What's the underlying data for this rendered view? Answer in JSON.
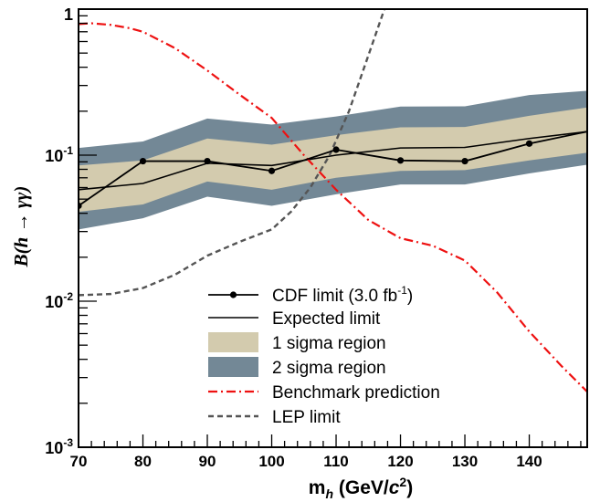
{
  "chart_data": {
    "type": "line",
    "xlabel": {
      "main": "m",
      "sub": "h",
      "units_prefix": " (GeV/",
      "units_italic": "c",
      "units_sup": "2",
      "units_suffix": ")"
    },
    "ylabel": {
      "prefix": "B(",
      "italic_h": "h",
      "arrow": " → ",
      "gamma": "γγ",
      "suffix": ")"
    },
    "xlim": [
      70,
      149
    ],
    "ylim": [
      0.001,
      1
    ],
    "yscale": "log",
    "x_ticks": [
      70,
      80,
      90,
      100,
      110,
      120,
      130,
      140
    ],
    "y_ticks": [
      {
        "value": 1,
        "base": "1",
        "exp": ""
      },
      {
        "value": 0.1,
        "base": "10",
        "exp": "-1"
      },
      {
        "value": 0.01,
        "base": "10",
        "exp": "-2"
      },
      {
        "value": 0.001,
        "base": "10",
        "exp": "-3"
      }
    ],
    "legend_position": "bottom-center",
    "colors": {
      "one_sigma": "#d3cbae",
      "two_sigma": "#738896",
      "benchmark": "#ee1111",
      "lep": "#555555",
      "cdf": "#000000"
    },
    "series": [
      {
        "name": "CDF limit (3.0 fb",
        "name_sup": "-1",
        "name_suffix": ")",
        "style": "line-markers",
        "x": [
          70,
          80,
          90,
          100,
          110,
          120,
          130,
          140,
          149
        ],
        "y": [
          0.045,
          0.091,
          0.091,
          0.078,
          0.109,
          0.092,
          0.091,
          0.12,
          0.145
        ]
      },
      {
        "name": "Expected limit",
        "style": "line",
        "x": [
          70,
          80,
          90,
          100,
          110,
          120,
          130,
          140,
          149
        ],
        "y": [
          0.058,
          0.064,
          0.088,
          0.085,
          0.1,
          0.112,
          0.113,
          0.13,
          0.145
        ]
      },
      {
        "name": "1 sigma region",
        "style": "band",
        "x": [
          70,
          80,
          90,
          100,
          110,
          120,
          130,
          140,
          149
        ],
        "y_low": [
          0.041,
          0.046,
          0.066,
          0.058,
          0.07,
          0.078,
          0.079,
          0.092,
          0.104
        ],
        "y_high": [
          0.085,
          0.092,
          0.13,
          0.118,
          0.137,
          0.155,
          0.156,
          0.186,
          0.212
        ]
      },
      {
        "name": "2 sigma region",
        "style": "band",
        "x": [
          70,
          80,
          90,
          100,
          110,
          120,
          130,
          140,
          149
        ],
        "y_low": [
          0.031,
          0.037,
          0.052,
          0.045,
          0.054,
          0.063,
          0.063,
          0.075,
          0.086
        ],
        "y_high": [
          0.112,
          0.124,
          0.178,
          0.162,
          0.184,
          0.215,
          0.216,
          0.258,
          0.276
        ]
      },
      {
        "name": "Benchmark prediction",
        "style": "dash-dot",
        "x": [
          70,
          72,
          75,
          78,
          80,
          85,
          90,
          95,
          100,
          105,
          110,
          115,
          120,
          125,
          130,
          135,
          140,
          145,
          149
        ],
        "y": [
          0.79,
          0.8,
          0.78,
          0.74,
          0.7,
          0.54,
          0.38,
          0.26,
          0.18,
          0.1,
          0.058,
          0.036,
          0.027,
          0.024,
          0.019,
          0.0115,
          0.0062,
          0.0036,
          0.0024
        ]
      },
      {
        "name": "LEP limit",
        "style": "dash",
        "x": [
          70,
          75,
          80,
          85,
          90,
          95,
          100,
          103,
          106,
          109,
          112,
          115,
          117.5
        ],
        "y": [
          0.011,
          0.0112,
          0.0123,
          0.0152,
          0.0205,
          0.0255,
          0.031,
          0.041,
          0.06,
          0.1,
          0.2,
          0.48,
          1.0
        ]
      }
    ]
  }
}
